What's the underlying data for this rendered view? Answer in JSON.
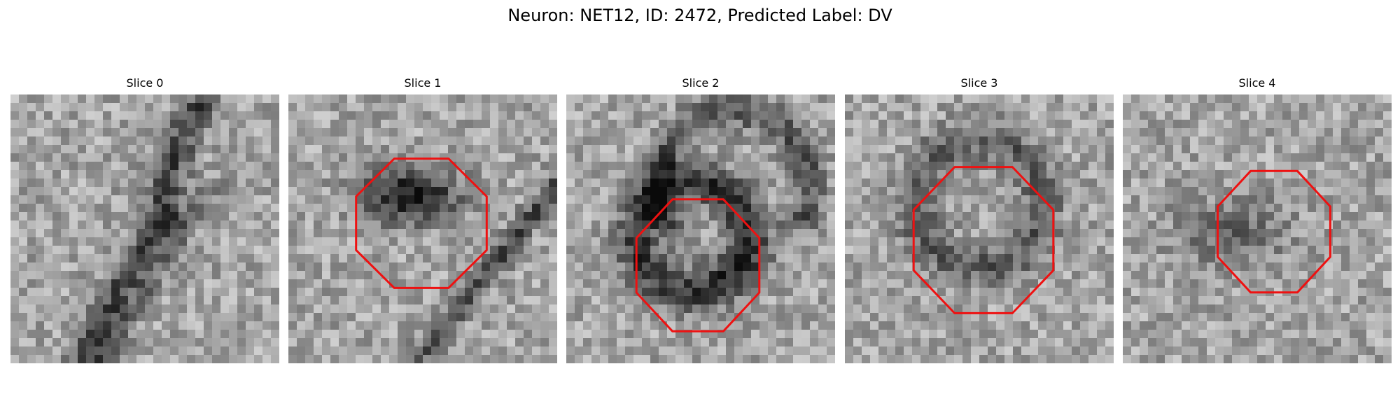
{
  "figure": {
    "title": "Neuron: NET12, ID: 2472, Predicted Label: DV"
  },
  "panels": [
    {
      "label": "Slice 0",
      "has_outline": false,
      "style": "edge"
    },
    {
      "label": "Slice 1",
      "has_outline": true,
      "style": "dark-blob"
    },
    {
      "label": "Slice 2",
      "has_outline": true,
      "style": "ring"
    },
    {
      "label": "Slice 3",
      "has_outline": true,
      "style": "ring-faint"
    },
    {
      "label": "Slice 4",
      "has_outline": true,
      "style": "faint-blob"
    }
  ],
  "colors": {
    "outline": "#ee1111",
    "background": "#ffffff"
  }
}
